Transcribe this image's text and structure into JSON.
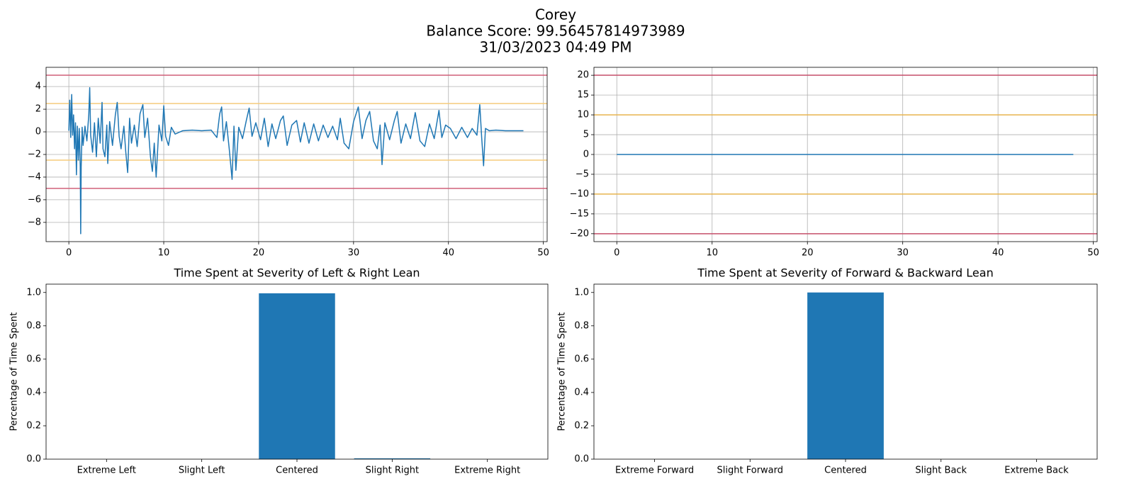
{
  "suptitle": [
    "Corey",
    "Balance Score: 99.56457814973989",
    "31/03/2023 04:49 PM"
  ],
  "chart_data": [
    {
      "type": "line",
      "x": [
        0,
        0.1,
        0.2,
        0.3,
        0.4,
        0.5,
        0.6,
        0.7,
        0.8,
        0.9,
        1.0,
        1.1,
        1.2,
        1.25,
        1.3,
        1.4,
        1.5,
        1.7,
        1.9,
        2.1,
        2.2,
        2.3,
        2.5,
        2.7,
        2.9,
        3.1,
        3.3,
        3.5,
        3.6,
        3.8,
        4.0,
        4.1,
        4.3,
        4.6,
        4.9,
        5.1,
        5.3,
        5.5,
        5.8,
        6.0,
        6.2,
        6.4,
        6.6,
        6.9,
        7.2,
        7.5,
        7.8,
        8.0,
        8.3,
        8.6,
        8.8,
        9.0,
        9.2,
        9.5,
        9.8,
        10.0,
        10.2,
        10.5,
        10.8,
        11.2,
        12,
        13,
        14,
        15,
        15.6,
        15.9,
        16.1,
        16.3,
        16.6,
        16.9,
        17.2,
        17.4,
        17.6,
        17.9,
        18.3,
        18.7,
        19.0,
        19.3,
        19.7,
        20.2,
        20.6,
        21.0,
        21.4,
        21.8,
        22.3,
        22.6,
        23.0,
        23.5,
        24.0,
        24.4,
        24.8,
        25.3,
        25.8,
        26.3,
        26.8,
        27.3,
        27.8,
        28.3,
        28.6,
        29.0,
        29.5,
        30.0,
        30.5,
        30.9,
        31.3,
        31.7,
        32.1,
        32.5,
        32.8,
        33.0,
        33.3,
        33.8,
        34.3,
        34.6,
        35.0,
        35.5,
        36.0,
        36.5,
        37.0,
        37.5,
        38.0,
        38.5,
        39.0,
        39.3,
        39.7,
        40.2,
        40.8,
        41.4,
        42.0,
        42.5,
        43.0,
        43.3,
        43.5,
        43.7,
        43.9,
        44.3,
        45,
        46,
        47,
        47.9
      ],
      "series": [
        {
          "color": "#1f77b4",
          "values": [
            0.1,
            2.8,
            -0.5,
            3.3,
            -0.3,
            1.5,
            -1.5,
            0.8,
            -3.8,
            0.5,
            -2.5,
            0.3,
            -3,
            -9,
            -3.1,
            0.4,
            -1.2,
            0.5,
            -0.8,
            1.5,
            3.9,
            -0.3,
            -1.8,
            0.8,
            -2.2,
            1.2,
            -1,
            2.6,
            -1.5,
            -2.2,
            0.6,
            -2.8,
            0.9,
            -1.2,
            1.5,
            2.6,
            -0.4,
            -1.5,
            0.5,
            -1.8,
            -3.6,
            1.2,
            -1,
            0.6,
            -1.3,
            1.6,
            2.4,
            -0.5,
            1.2,
            -2.2,
            -3.5,
            -1.0,
            -4,
            0.6,
            -0.8,
            2.3,
            -0.4,
            -1.2,
            0.4,
            -0.2,
            0.1,
            0.15,
            0.1,
            0.15,
            -0.5,
            1.6,
            2.2,
            -0.8,
            0.9,
            -1.5,
            -4.2,
            0.5,
            -3.4,
            0.4,
            -0.6,
            1.0,
            2.1,
            -0.4,
            0.8,
            -0.7,
            1.2,
            -1.3,
            0.7,
            -0.6,
            1.0,
            1.4,
            -1.2,
            0.6,
            1.0,
            -0.9,
            0.8,
            -1.0,
            0.7,
            -0.8,
            0.6,
            -0.5,
            0.5,
            -0.7,
            1.2,
            -1.0,
            -1.5,
            0.9,
            2.2,
            -0.6,
            1.0,
            1.8,
            -0.8,
            -1.5,
            0.6,
            -2.9,
            0.8,
            -0.7,
            1.0,
            1.8,
            -1.0,
            0.7,
            -0.6,
            1.7,
            -0.8,
            -1.3,
            0.7,
            -0.6,
            1.9,
            -0.5,
            0.6,
            0.3,
            -0.6,
            0.4,
            -0.5,
            0.3,
            -0.3,
            2.4,
            -0.5,
            -3.0,
            0.3,
            0.1,
            0.15,
            0.1,
            0.1,
            0.1
          ]
        }
      ],
      "hlines": [
        {
          "value": 5,
          "color": "#d0607a"
        },
        {
          "value": -5,
          "color": "#d0607a"
        },
        {
          "value": 2.5,
          "color": "#f5cb7c"
        },
        {
          "value": -2.5,
          "color": "#f5cb7c"
        }
      ],
      "xlim": [
        -2.4,
        50.4
      ],
      "xticks": [
        0,
        10,
        20,
        30,
        40,
        50
      ],
      "ylim": [
        -9.7,
        5.7
      ],
      "yticks": [
        {
          "value": -8,
          "label": "−8"
        },
        {
          "value": -6,
          "label": "−6"
        },
        {
          "value": -4,
          "label": "−4"
        },
        {
          "value": -2,
          "label": "−2"
        },
        0,
        2,
        4
      ],
      "grid": true
    },
    {
      "type": "line",
      "x": [
        0,
        47.9
      ],
      "series": [
        {
          "color": "#1f77b4",
          "values": [
            0,
            0
          ]
        }
      ],
      "hlines": [
        {
          "value": 20,
          "color": "#c8506c"
        },
        {
          "value": -20,
          "color": "#c8506c"
        },
        {
          "value": 10,
          "color": "#e8b44e"
        },
        {
          "value": -10,
          "color": "#e8b44e"
        }
      ],
      "xlim": [
        -2.4,
        50.4
      ],
      "xticks": [
        0,
        10,
        20,
        30,
        40,
        50
      ],
      "ylim": [
        -22,
        22
      ],
      "yticks": [
        {
          "value": -20,
          "label": "−20"
        },
        {
          "value": -15,
          "label": "−15"
        },
        {
          "value": -10,
          "label": "−10"
        },
        {
          "value": -5,
          "label": "−5"
        },
        0,
        5,
        10,
        15,
        20
      ],
      "grid": true
    },
    {
      "type": "bar",
      "title": "Time Spent at Severity of Left & Right Lean",
      "ylabel": "Percentage of Time Spent",
      "categories": [
        "Extreme Left",
        "Slight Left",
        "Centered",
        "Slight Right",
        "Extreme Right"
      ],
      "values": [
        0,
        0,
        0.995,
        0.005,
        0
      ],
      "color": "#1f77b4",
      "ylim": [
        0,
        1.05
      ],
      "yticks": [
        {
          "value": 0,
          "label": "0.0"
        },
        0.2,
        0.4,
        0.6,
        0.8,
        {
          "value": 1,
          "label": "1.0"
        }
      ],
      "grid": false
    },
    {
      "type": "bar",
      "title": "Time Spent at Severity of Forward & Backward Lean",
      "ylabel": "Percentage of Time Spent",
      "categories": [
        "Extreme Forward",
        "Slight Forward",
        "Centered",
        "Slight Back",
        "Extreme Back"
      ],
      "values": [
        0,
        0,
        1,
        0,
        0
      ],
      "color": "#1f77b4",
      "ylim": [
        0,
        1.05
      ],
      "yticks": [
        {
          "value": 0,
          "label": "0.0"
        },
        0.2,
        0.4,
        0.6,
        0.8,
        {
          "value": 1,
          "label": "1.0"
        }
      ],
      "grid": false
    }
  ]
}
